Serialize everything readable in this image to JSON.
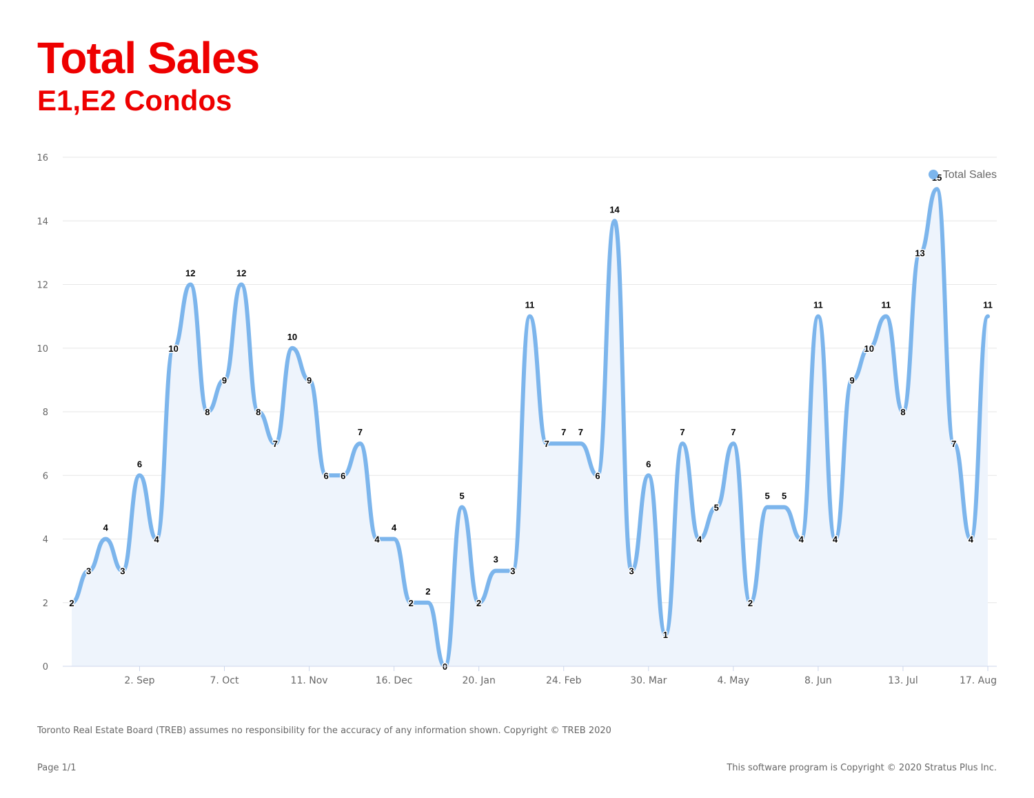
{
  "header": {
    "title": "Total Sales",
    "subtitle": "E1,E2 Condos"
  },
  "footer": {
    "disclaimer": "Toronto Real Estate Board (TREB) assumes no responsibility for the accuracy of any information shown. Copyright © TREB 2020",
    "page": "Page 1/1",
    "copyright": "This software program is Copyright © 2020 Stratus Plus Inc."
  },
  "colors": {
    "title": "#ee0000",
    "series_line": "#7cb5ec",
    "series_fill": "#eef4fc",
    "grid": "#e6e6e6",
    "axis_text": "#666666"
  },
  "chart_data": {
    "type": "area",
    "title": "Total Sales",
    "subtitle": "E1,E2 Condos",
    "xlabel": "",
    "ylabel": "",
    "ylim": [
      0,
      16
    ],
    "yticks": [
      0,
      2,
      4,
      6,
      8,
      10,
      12,
      14,
      16
    ],
    "xtick_labels": [
      "2. Sep",
      "7. Oct",
      "11. Nov",
      "16. Dec",
      "20. Jan",
      "24. Feb",
      "30. Mar",
      "4. May",
      "8. Jun",
      "13. Jul",
      "17. Aug"
    ],
    "xtick_week_index": [
      4,
      9,
      14,
      19,
      24,
      29,
      34,
      39,
      44,
      49,
      54
    ],
    "x_interval": "weekly",
    "grid": true,
    "legend_position": "top-right",
    "data_labels": true,
    "series": [
      {
        "name": "Total Sales",
        "values": [
          2,
          3,
          4,
          3,
          6,
          4,
          10,
          12,
          8,
          9,
          12,
          8,
          7,
          10,
          9,
          6,
          6,
          7,
          4,
          4,
          2,
          2,
          0,
          5,
          2,
          3,
          3,
          11,
          7,
          7,
          7,
          6,
          14,
          3,
          6,
          1,
          7,
          4,
          5,
          7,
          2,
          5,
          5,
          4,
          11,
          4,
          9,
          10,
          11,
          8,
          13,
          15,
          7,
          4,
          11
        ]
      }
    ]
  }
}
